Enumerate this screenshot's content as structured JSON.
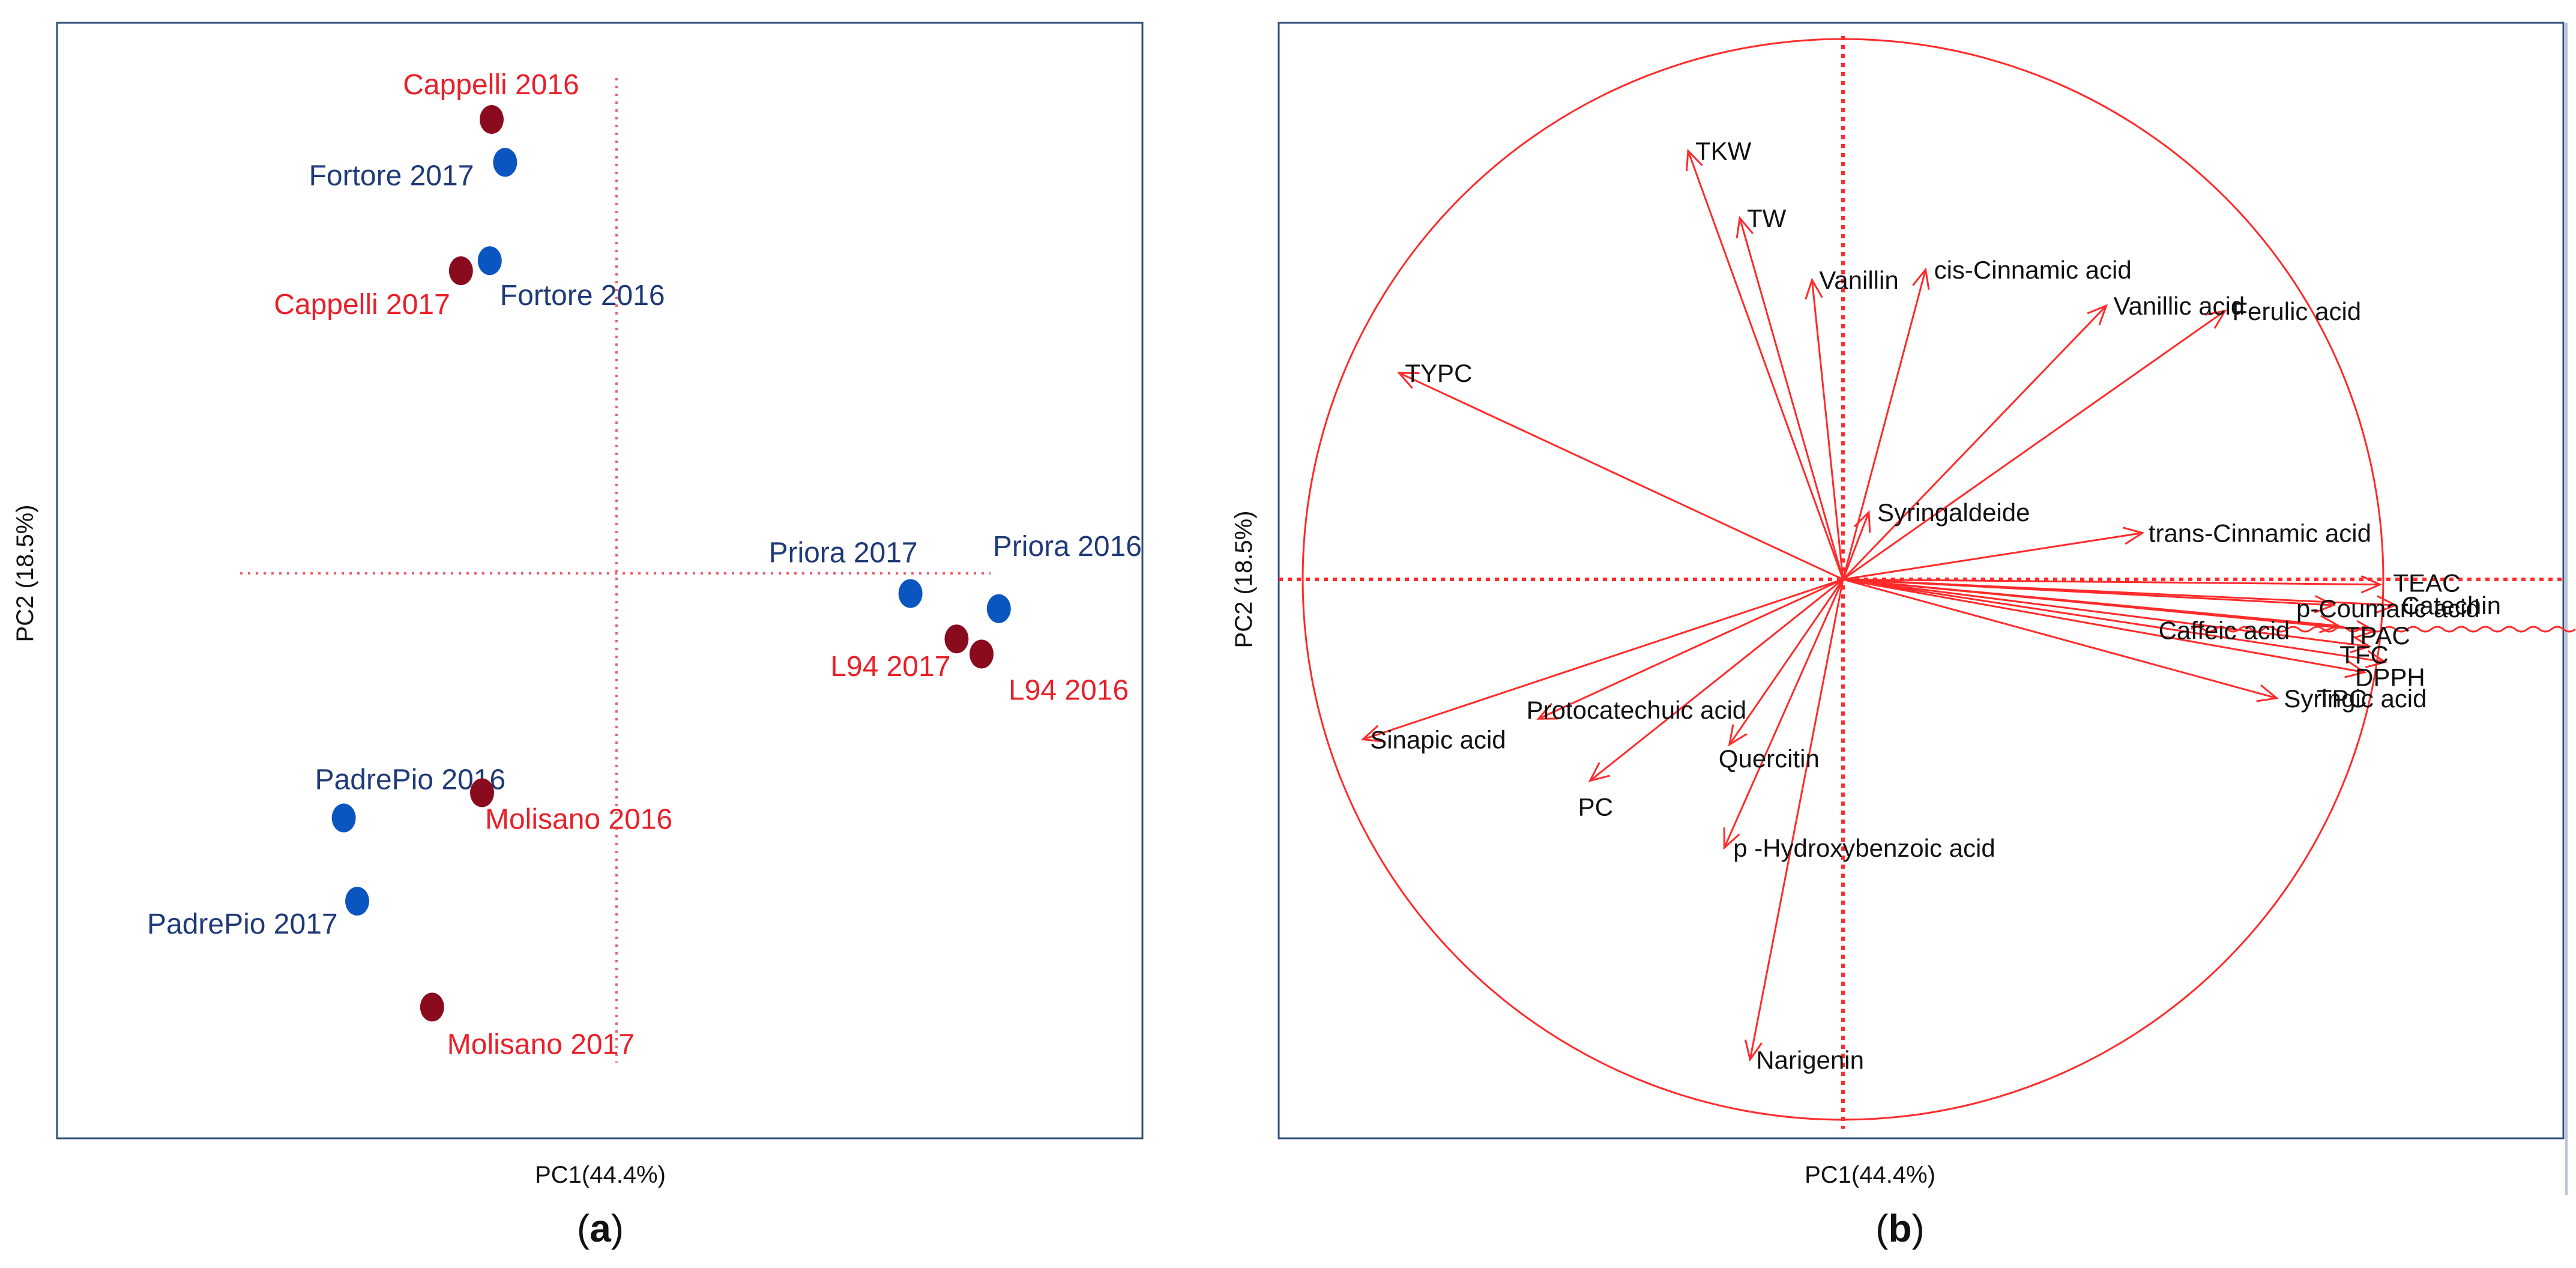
{
  "colors": {
    "frame": "#2e4f7a",
    "guide": "#f06070",
    "biplot": "#ff2a2a",
    "navy": "#1f3a78",
    "red_text": "#e8202a",
    "blue_dot": "#0a55c0",
    "red_dot": "#8a0a1e",
    "black": "#111111"
  },
  "chart_data": [
    {
      "panel": "a",
      "type": "scatter",
      "title": "",
      "xlabel": "PC1(44.4%)",
      "ylabel": "PC2 (18.5%)",
      "caption_letter": "a",
      "xlim": [
        -3,
        3
      ],
      "ylim": [
        -3,
        3
      ],
      "grid": false,
      "reference_lines": {
        "x": 0,
        "y": 0
      },
      "points": [
        {
          "label": "Cappelli 2016",
          "x": -0.65,
          "y": 1.8,
          "group": "red"
        },
        {
          "label": "Fortore 2017",
          "x": -0.58,
          "y": 1.63,
          "group": "blue"
        },
        {
          "label": "Fortore 2016",
          "x": -0.66,
          "y": 1.24,
          "group": "blue"
        },
        {
          "label": "Cappelli 2017",
          "x": -0.81,
          "y": 1.2,
          "group": "red"
        },
        {
          "label": "Priora 2017",
          "x": 1.53,
          "y": -0.08,
          "group": "blue"
        },
        {
          "label": "Priora 2016",
          "x": 1.99,
          "y": -0.14,
          "group": "blue"
        },
        {
          "label": "L94 2017",
          "x": 1.77,
          "y": -0.26,
          "group": "red"
        },
        {
          "label": "L94 2016",
          "x": 1.9,
          "y": -0.32,
          "group": "red"
        },
        {
          "label": "PadrePio  2016",
          "x": -1.42,
          "y": -0.97,
          "group": "blue"
        },
        {
          "label": "Molisano 2016",
          "x": -0.7,
          "y": -0.87,
          "group": "red"
        },
        {
          "label": "PadrePio  2017",
          "x": -1.35,
          "y": -1.3,
          "group": "blue"
        },
        {
          "label": "Molisano 2017",
          "x": -0.96,
          "y": -1.72,
          "group": "red"
        }
      ]
    },
    {
      "panel": "b",
      "type": "scatter",
      "subtype": "loading-biplot",
      "title": "",
      "xlabel": "PC1(44.4%)",
      "ylabel": "PC2 (18.5%)",
      "caption_letter": "b",
      "xlim": [
        -1,
        1
      ],
      "ylim": [
        -1,
        1
      ],
      "grid": false,
      "unit_circle": true,
      "loadings": [
        {
          "label": "TKW",
          "x": -0.3,
          "y": 0.83
        },
        {
          "label": "TW",
          "x": -0.2,
          "y": 0.7
        },
        {
          "label": "Vanillin",
          "x": -0.06,
          "y": 0.58
        },
        {
          "label": "cis-Cinnamic acid",
          "x": 0.16,
          "y": 0.6
        },
        {
          "label": "Vanillic acid",
          "x": 0.51,
          "y": 0.53
        },
        {
          "label": "Ferulic acid",
          "x": 0.74,
          "y": 0.52
        },
        {
          "label": "TYPC",
          "x": -0.86,
          "y": 0.4
        },
        {
          "label": "Syringaldeide",
          "x": 0.05,
          "y": 0.13
        },
        {
          "label": "trans-Cinnamic acid",
          "x": 0.58,
          "y": 0.09
        },
        {
          "label": "TEAC",
          "x": 1.04,
          "y": -0.01
        },
        {
          "label": "p-Coumaric acid",
          "x": 0.95,
          "y": -0.05
        },
        {
          "label": "Catechin",
          "x": 1.07,
          "y": -0.05
        },
        {
          "label": "Caffeic acid",
          "x": 0.96,
          "y": -0.09
        },
        {
          "label": "TPAC",
          "x": 1.03,
          "y": -0.1
        },
        {
          "label": "TFC",
          "x": 1.02,
          "y": -0.13
        },
        {
          "label": "DPPH",
          "x": 1.05,
          "y": -0.16
        },
        {
          "label": "TPC",
          "x": 1.01,
          "y": -0.18
        },
        {
          "label": "Syringic acid",
          "x": 0.84,
          "y": -0.23
        },
        {
          "label": "Protocatechuic acid",
          "x": -0.59,
          "y": -0.27
        },
        {
          "label": "Sinapic acid",
          "x": -0.93,
          "y": -0.31
        },
        {
          "label": "Quercitin",
          "x": -0.22,
          "y": -0.32
        },
        {
          "label": "PC",
          "x": -0.49,
          "y": -0.39
        },
        {
          "label": "p -Hydroxybenzoic acid",
          "x": -0.23,
          "y": -0.52
        },
        {
          "label": "Narigenin",
          "x": -0.18,
          "y": -0.93
        }
      ]
    }
  ]
}
